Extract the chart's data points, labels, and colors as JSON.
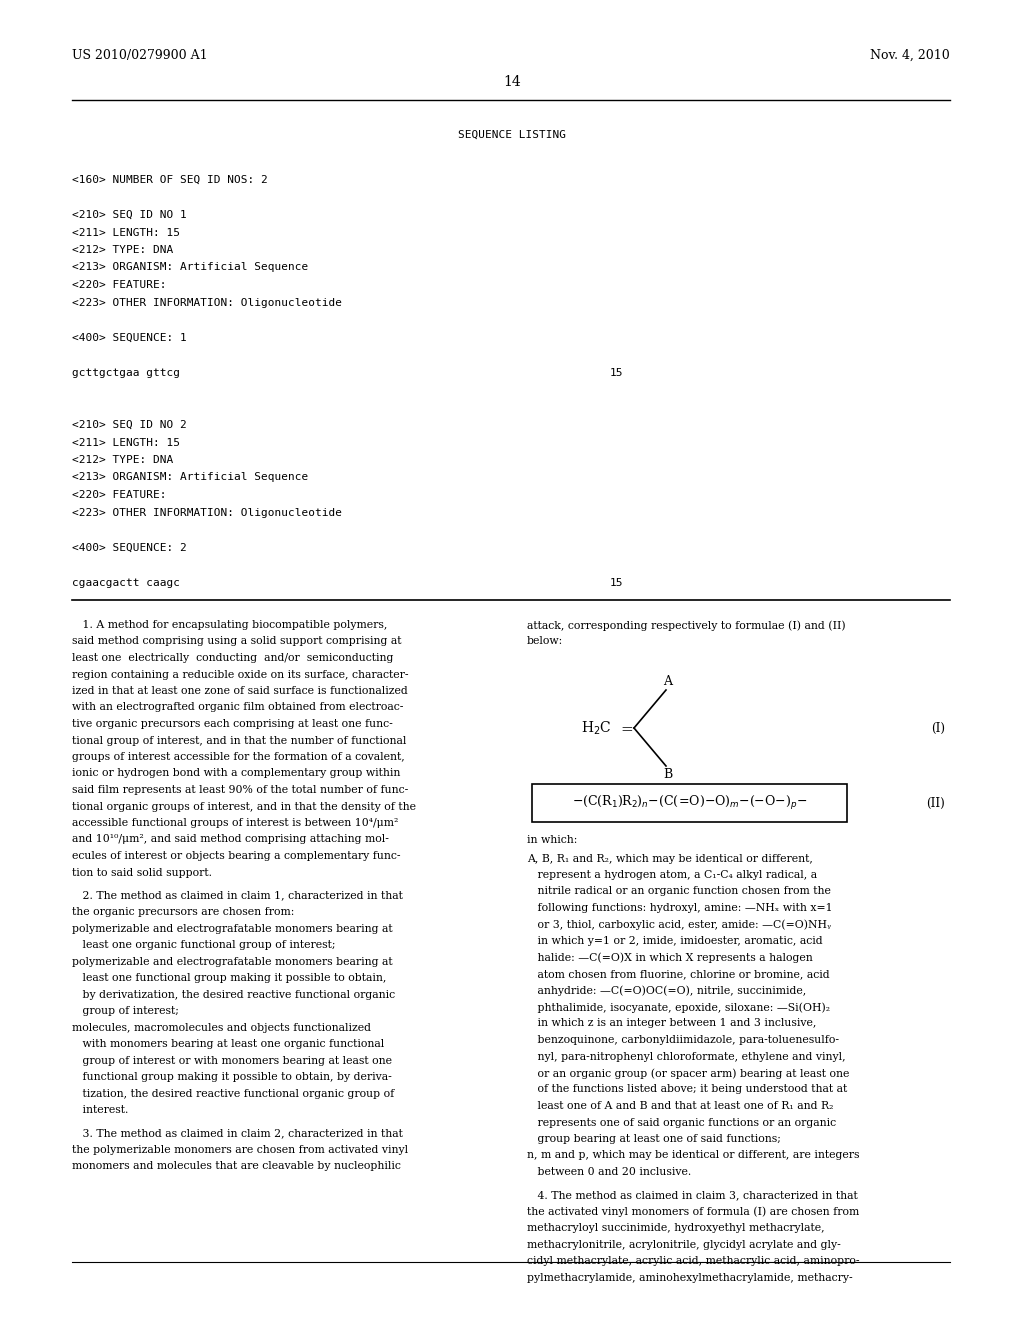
{
  "bg_color": "#ffffff",
  "header_left": "US 2010/0279900 A1",
  "header_right": "Nov. 4, 2010",
  "page_number": "14",
  "seq_listing_title": "SEQUENCE LISTING",
  "seq_lines": [
    "<160> NUMBER OF SEQ ID NOS: 2",
    "",
    "<210> SEQ ID NO 1",
    "<211> LENGTH: 15",
    "<212> TYPE: DNA",
    "<213> ORGANISM: Artificial Sequence",
    "<220> FEATURE:",
    "<223> OTHER INFORMATION: Oligonucleotide",
    "",
    "<400> SEQUENCE: 1",
    "",
    "gcttgctgaa gttcg",
    "",
    "",
    "<210> SEQ ID NO 2",
    "<211> LENGTH: 15",
    "<212> TYPE: DNA",
    "<213> ORGANISM: Artificial Sequence",
    "<220> FEATURE:",
    "<223> OTHER INFORMATION: Oligonucleotide",
    "",
    "<400> SEQUENCE: 2",
    "",
    "cgaacgactt caagc"
  ],
  "seq1_num_line": 11,
  "seq1_number": "15",
  "seq2_num_line": 23,
  "seq2_number": "15",
  "col1_lines": [
    "   1. A method for encapsulating biocompatible polymers,",
    "said method comprising using a solid support comprising at",
    "least one  electrically  conducting  and/or  semiconducting",
    "region containing a reducible oxide on its surface, character-",
    "ized in that at least one zone of said surface is functionalized",
    "with an electrografted organic film obtained from electroac-",
    "tive organic precursors each comprising at least one func-",
    "tional group of interest, and in that the number of functional",
    "groups of interest accessible for the formation of a covalent,",
    "ionic or hydrogen bond with a complementary group within",
    "said film represents at least 90% of the total number of func-",
    "tional organic groups of interest, and in that the density of the",
    "accessible functional groups of interest is between 10⁴/μm²",
    "and 10¹⁰/μm², and said method comprising attaching mol-",
    "ecules of interest or objects bearing a complementary func-",
    "tion to said solid support.",
    "",
    "   2. The method as claimed in claim 1, characterized in that",
    "the organic precursors are chosen from:",
    "BULLET",
    "polymerizable and electrografatable monomers bearing at",
    "   least one organic functional group of interest;",
    "BULLET",
    "polymerizable and electrografatable monomers bearing at",
    "   least one functional group making it possible to obtain,",
    "   by derivatization, the desired reactive functional organic",
    "   group of interest;",
    "BULLET",
    "molecules, macromolecules and objects functionalized",
    "   with monomers bearing at least one organic functional",
    "   group of interest or with monomers bearing at least one",
    "   functional group making it possible to obtain, by deriva-",
    "   tization, the desired reactive functional organic group of",
    "   interest.",
    "",
    "   3. The method as claimed in claim 2, characterized in that",
    "the polymerizable monomers are chosen from activated vinyl",
    "monomers and molecules that are cleavable by nucleophilic"
  ],
  "col2_lines": [
    "attack, corresponding respectively to formulae (I) and (II)",
    "below:"
  ],
  "col2_inwhich": "in which:",
  "col2_desc_lines": [
    "A, B, R₁ and R₂, which may be identical or different,",
    "   represent a hydrogen atom, a C₁-C₄ alkyl radical, a",
    "   nitrile radical or an organic function chosen from the",
    "   following functions: hydroxyl, amine: —NHₓ with x=1",
    "   or 3, thiol, carboxylic acid, ester, amide: —C(=O)NHᵧ",
    "   in which y=1 or 2, imide, imidoester, aromatic, acid",
    "   halide: —C(=O)X in which X represents a halogen",
    "   atom chosen from fluorine, chlorine or bromine, acid",
    "   anhydride: —C(=O)OC(=O), nitrile, succinimide,",
    "   phthalimide, isocyanate, epoxide, siloxane: —Si(OH)₂",
    "   in which z is an integer between 1 and 3 inclusive,",
    "   benzoquinone, carbonyldiimidazole, para-toluenesulfo-",
    "   nyl, para-nitrophenyl chloroformate, ethylene and vinyl,",
    "   or an organic group (or spacer arm) bearing at least one",
    "   of the functions listed above; it being understood that at",
    "   least one of A and B and that at least one of R₁ and R₂",
    "   represents one of said organic functions or an organic",
    "   group bearing at least one of said functions;",
    "n, m and p, which may be identical or different, are integers",
    "   between 0 and 20 inclusive.",
    "",
    "   4. The method as claimed in claim 3, characterized in that",
    "the activated vinyl monomers of formula (I) are chosen from",
    "methacryloyl succinimide, hydroxyethyl methacrylate,",
    "methacrylonitrile, acrylonitrile, glycidyl acrylate and gly-",
    "cidyl methacrylate, acrylic acid, methacrylic acid, aminopro-",
    "pylmethacrylamide, aminohexylmethacrylamide, methacry-"
  ],
  "formula_I_label": "(I)",
  "formula_II_label": "(II)"
}
